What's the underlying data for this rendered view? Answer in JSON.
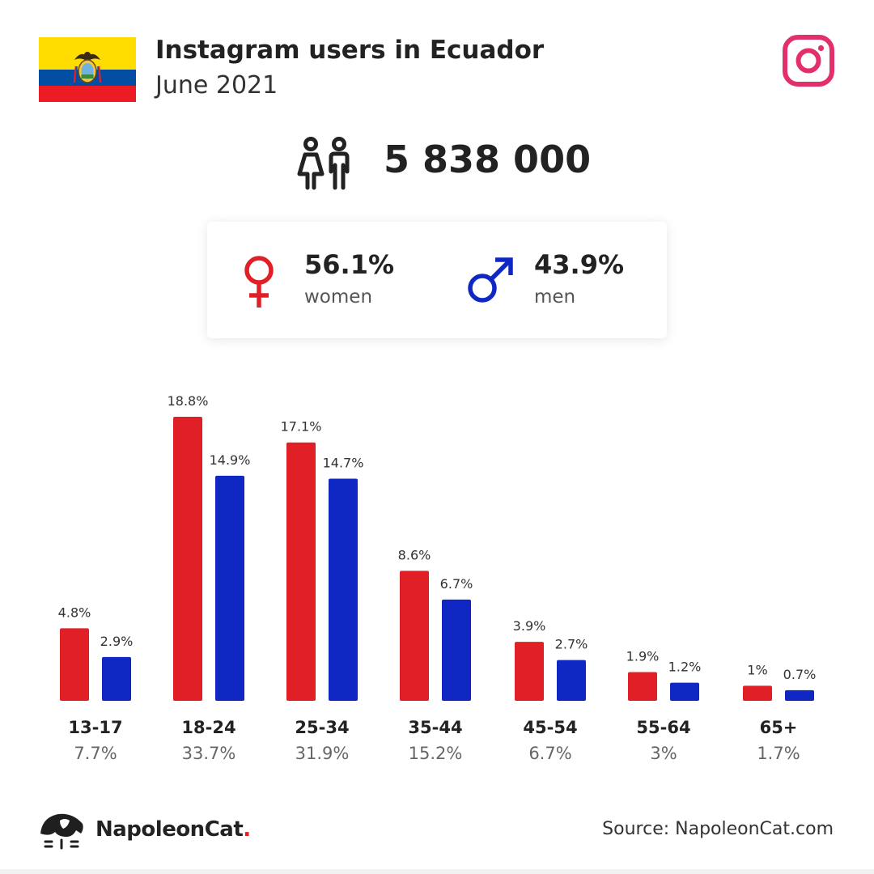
{
  "header": {
    "title": "Instagram users in Ecuador",
    "subtitle": "June 2021",
    "flag_colors": [
      "#FFDD00",
      "#034EA2",
      "#ED1C24"
    ],
    "flag_icon": "ecuador-flag-icon",
    "platform_icon": "instagram-icon",
    "platform_color": "#E1306C"
  },
  "total": {
    "value": "5 838 000",
    "icon": "users-icon"
  },
  "gender": {
    "women": {
      "pct": "56.1%",
      "label": "women",
      "icon": "female-symbol-icon",
      "color": "#E02026"
    },
    "men": {
      "pct": "43.9%",
      "label": "men",
      "icon": "male-symbol-icon",
      "color": "#0F28C4"
    }
  },
  "chart_data": {
    "type": "bar",
    "categories": [
      "13-17",
      "18-24",
      "25-34",
      "35-44",
      "45-54",
      "55-64",
      "65+"
    ],
    "category_totals": [
      "7.7%",
      "33.7%",
      "31.9%",
      "15.2%",
      "6.7%",
      "3%",
      "1.7%"
    ],
    "series": [
      {
        "values": [
          4.8,
          18.8,
          17.1,
          8.6,
          3.9,
          1.9,
          1.0
        ],
        "labels": [
          "4.8%",
          "18.8%",
          "17.1%",
          "8.6%",
          "3.9%",
          "1.9%",
          "1%"
        ],
        "color": "#E02026"
      },
      {
        "values": [
          2.9,
          14.9,
          14.7,
          6.7,
          2.7,
          1.2,
          0.7
        ],
        "labels": [
          "2.9%",
          "14.9%",
          "14.7%",
          "6.7%",
          "2.7%",
          "1.2%",
          "0.7%"
        ],
        "color": "#0F28C4"
      }
    ],
    "ylim": [
      0,
      18.8
    ],
    "grid": false,
    "legend": "none"
  },
  "footer": {
    "brand": "NapoleonCat",
    "brand_suffix": ".",
    "brand_icon": "napoleoncat-logo-icon",
    "source": "Source: NapoleonCat.com"
  }
}
